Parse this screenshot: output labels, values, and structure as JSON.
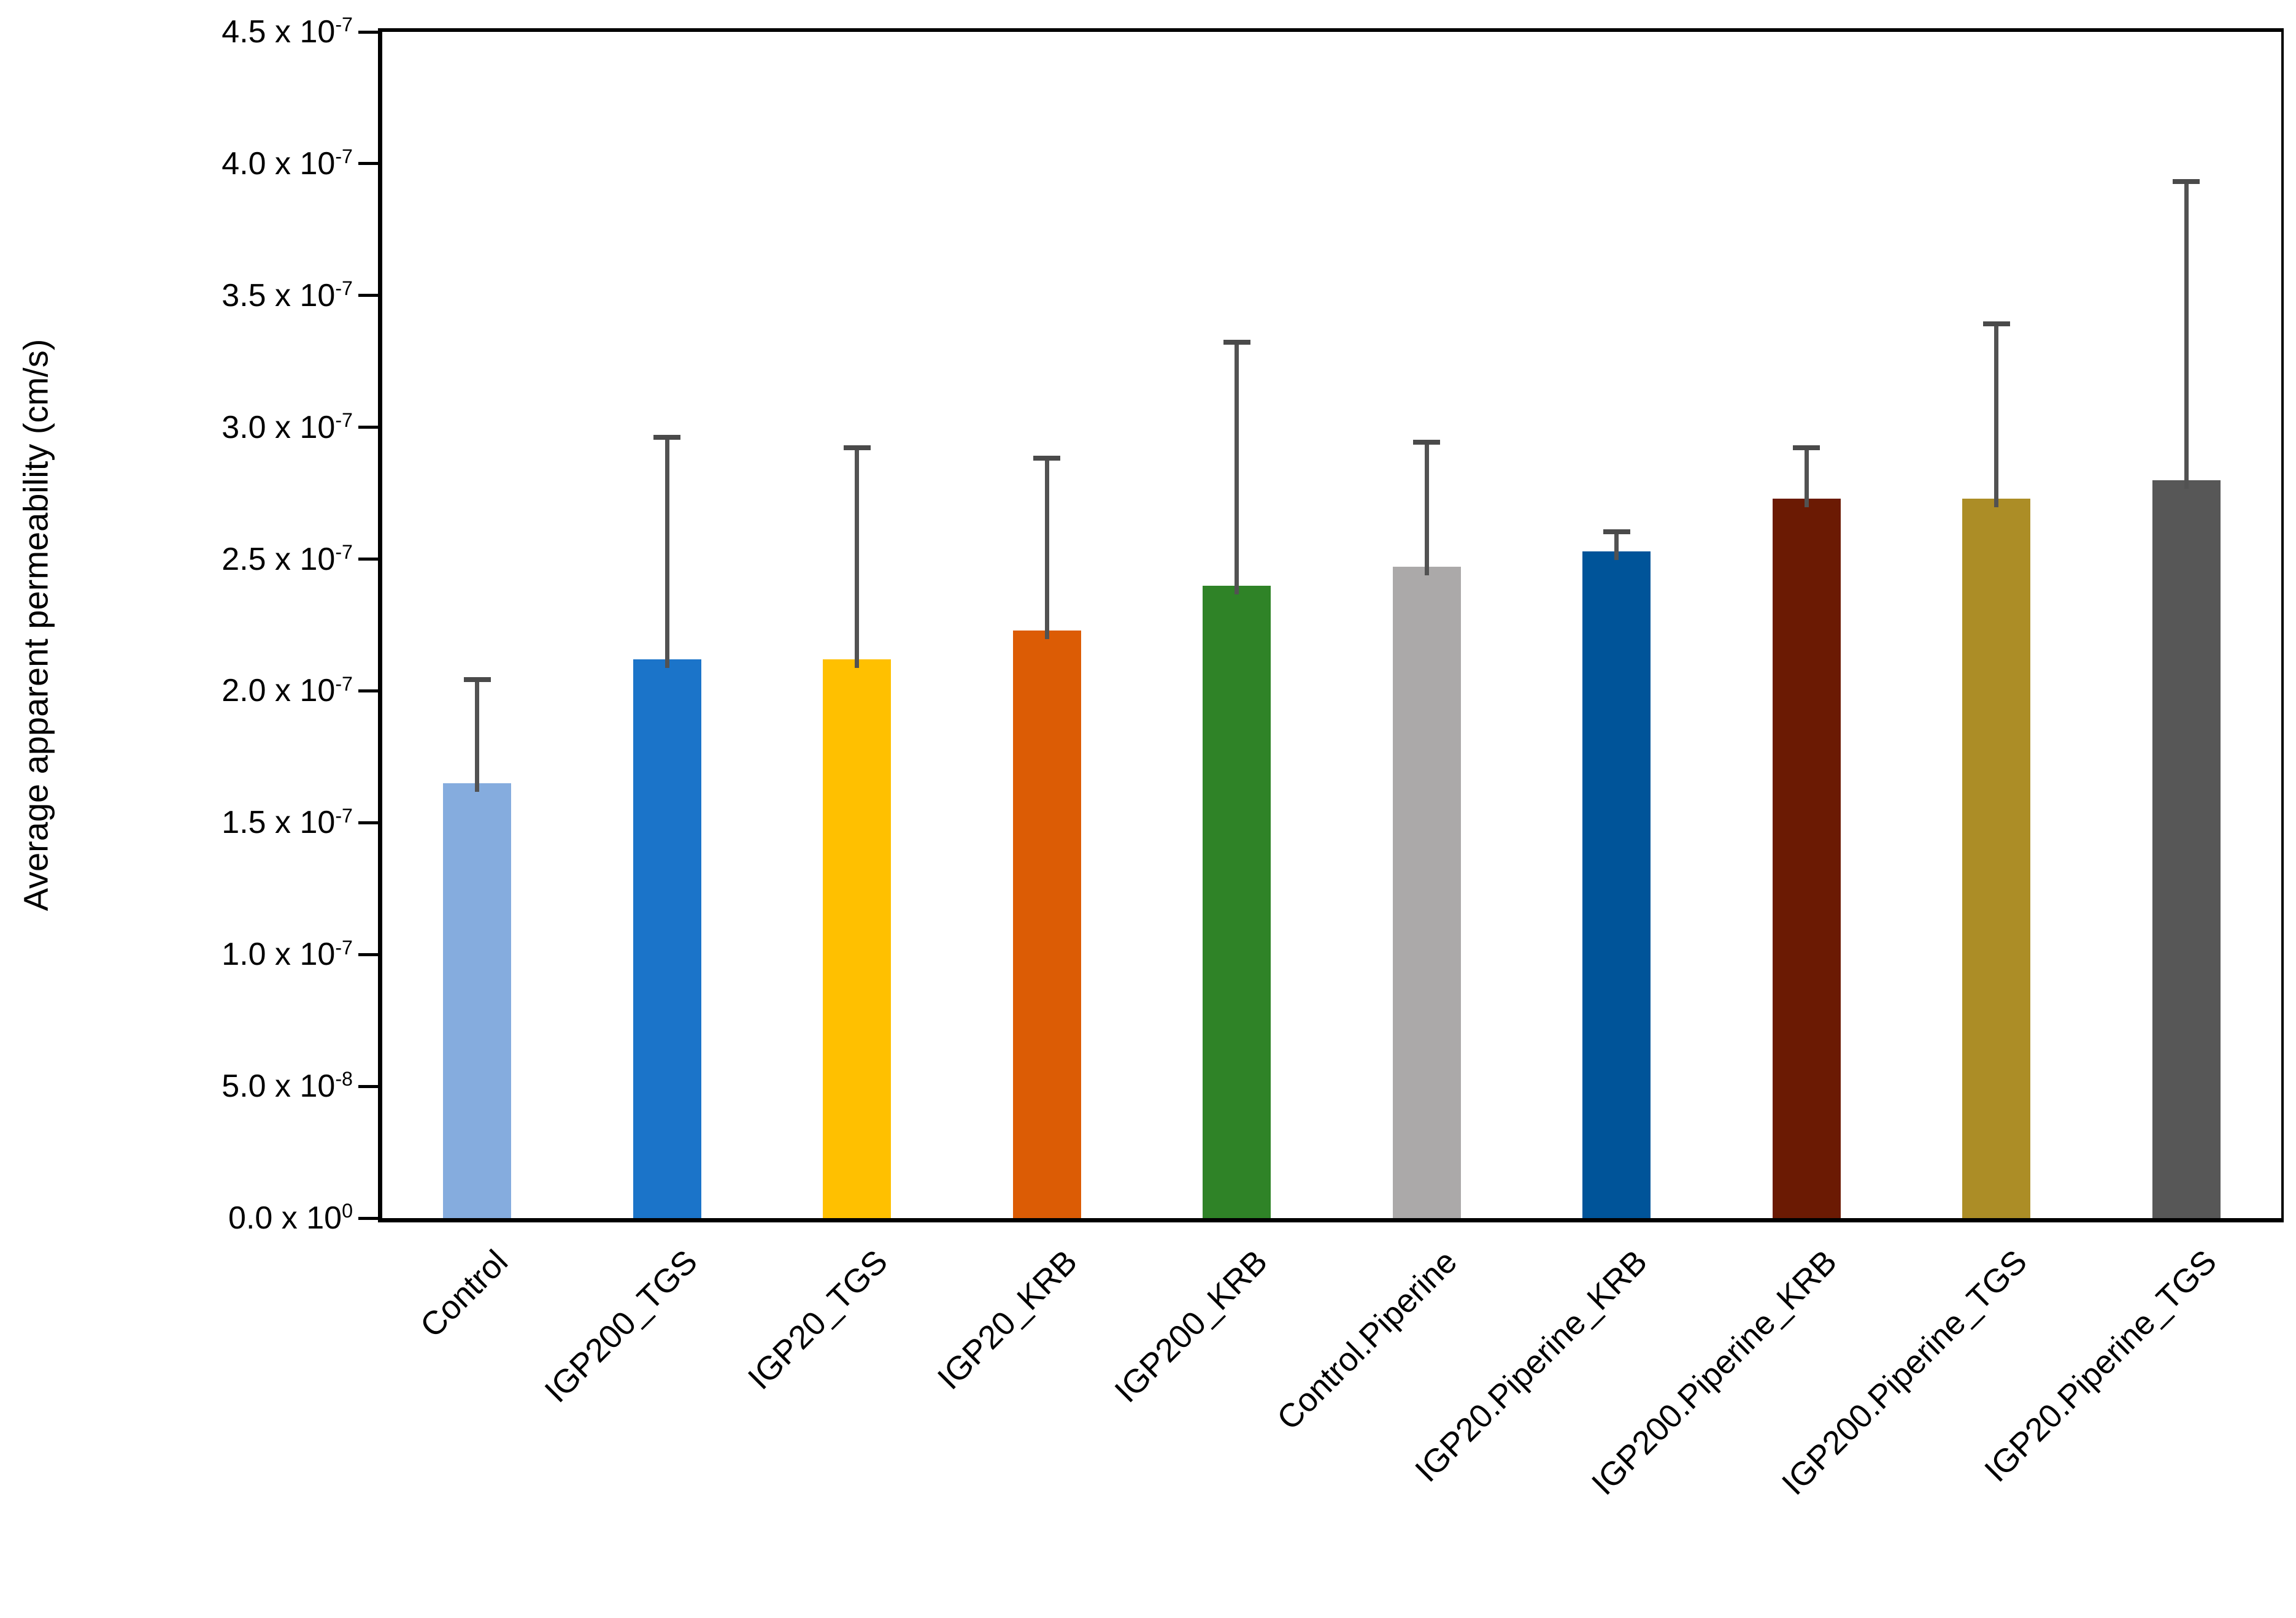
{
  "chart_data": {
    "type": "bar",
    "title": "",
    "xlabel": "",
    "ylabel": "Average apparent permeability (cm/s)",
    "unit": "cm/s",
    "grid": false,
    "legend": null,
    "xtick_rotation_deg": 45,
    "ylim_e7": [
      0,
      4.5
    ],
    "ytick_step_e7": 0.5,
    "axis_color": "#000000",
    "error_bar_color": "#525252",
    "yticks": [
      {
        "value_e7": 0.0,
        "mantissa": "0.0",
        "base": "10",
        "exponent": "0"
      },
      {
        "value_e7": 0.5,
        "mantissa": "5.0",
        "base": "10",
        "exponent": "-8"
      },
      {
        "value_e7": 1.0,
        "mantissa": "1.0",
        "base": "10",
        "exponent": "-7"
      },
      {
        "value_e7": 1.5,
        "mantissa": "1.5",
        "base": "10",
        "exponent": "-7"
      },
      {
        "value_e7": 2.0,
        "mantissa": "2.0",
        "base": "10",
        "exponent": "-7"
      },
      {
        "value_e7": 2.5,
        "mantissa": "2.5",
        "base": "10",
        "exponent": "-7"
      },
      {
        "value_e7": 3.0,
        "mantissa": "3.0",
        "base": "10",
        "exponent": "-7"
      },
      {
        "value_e7": 3.5,
        "mantissa": "3.5",
        "base": "10",
        "exponent": "-7"
      },
      {
        "value_e7": 4.0,
        "mantissa": "4.0",
        "base": "10",
        "exponent": "-7"
      },
      {
        "value_e7": 4.5,
        "mantissa": "4.5",
        "base": "10",
        "exponent": "-7"
      }
    ],
    "categories": [
      "Control",
      "IGP200_TGS",
      "IGP20_TGS",
      "IGP20_KRB",
      "IGP200_KRB",
      "Control.Piperine",
      "IGP20.Piperine_KRB",
      "IGP200.Piperine_KRB",
      "IGP200.Piperine_TGS",
      "IGP20.Piperine_TGS"
    ],
    "series": [
      {
        "category": "Control",
        "value_e7": 1.65,
        "error_plus_e7": 0.4,
        "color": "#85ACDE"
      },
      {
        "category": "IGP200_TGS",
        "value_e7": 2.12,
        "error_plus_e7": 0.85,
        "color": "#1B74C9"
      },
      {
        "category": "IGP20_TGS",
        "value_e7": 2.12,
        "error_plus_e7": 0.81,
        "color": "#FFC000"
      },
      {
        "category": "IGP20_KRB",
        "value_e7": 2.23,
        "error_plus_e7": 0.66,
        "color": "#DC5C05"
      },
      {
        "category": "IGP200_KRB",
        "value_e7": 2.4,
        "error_plus_e7": 0.93,
        "color": "#2F8327"
      },
      {
        "category": "Control.Piperine",
        "value_e7": 2.47,
        "error_plus_e7": 0.48,
        "color": "#ABA9A9"
      },
      {
        "category": "IGP20.Piperine_KRB",
        "value_e7": 2.53,
        "error_plus_e7": 0.08,
        "color": "#005499"
      },
      {
        "category": "IGP200.Piperine_KRB",
        "value_e7": 2.73,
        "error_plus_e7": 0.2,
        "color": "#6B1A03"
      },
      {
        "category": "IGP200.Piperine_TGS",
        "value_e7": 2.73,
        "error_plus_e7": 0.67,
        "color": "#AC8D26"
      },
      {
        "category": "IGP20.Piperine_TGS",
        "value_e7": 2.8,
        "error_plus_e7": 1.14,
        "color": "#575757"
      }
    ]
  }
}
